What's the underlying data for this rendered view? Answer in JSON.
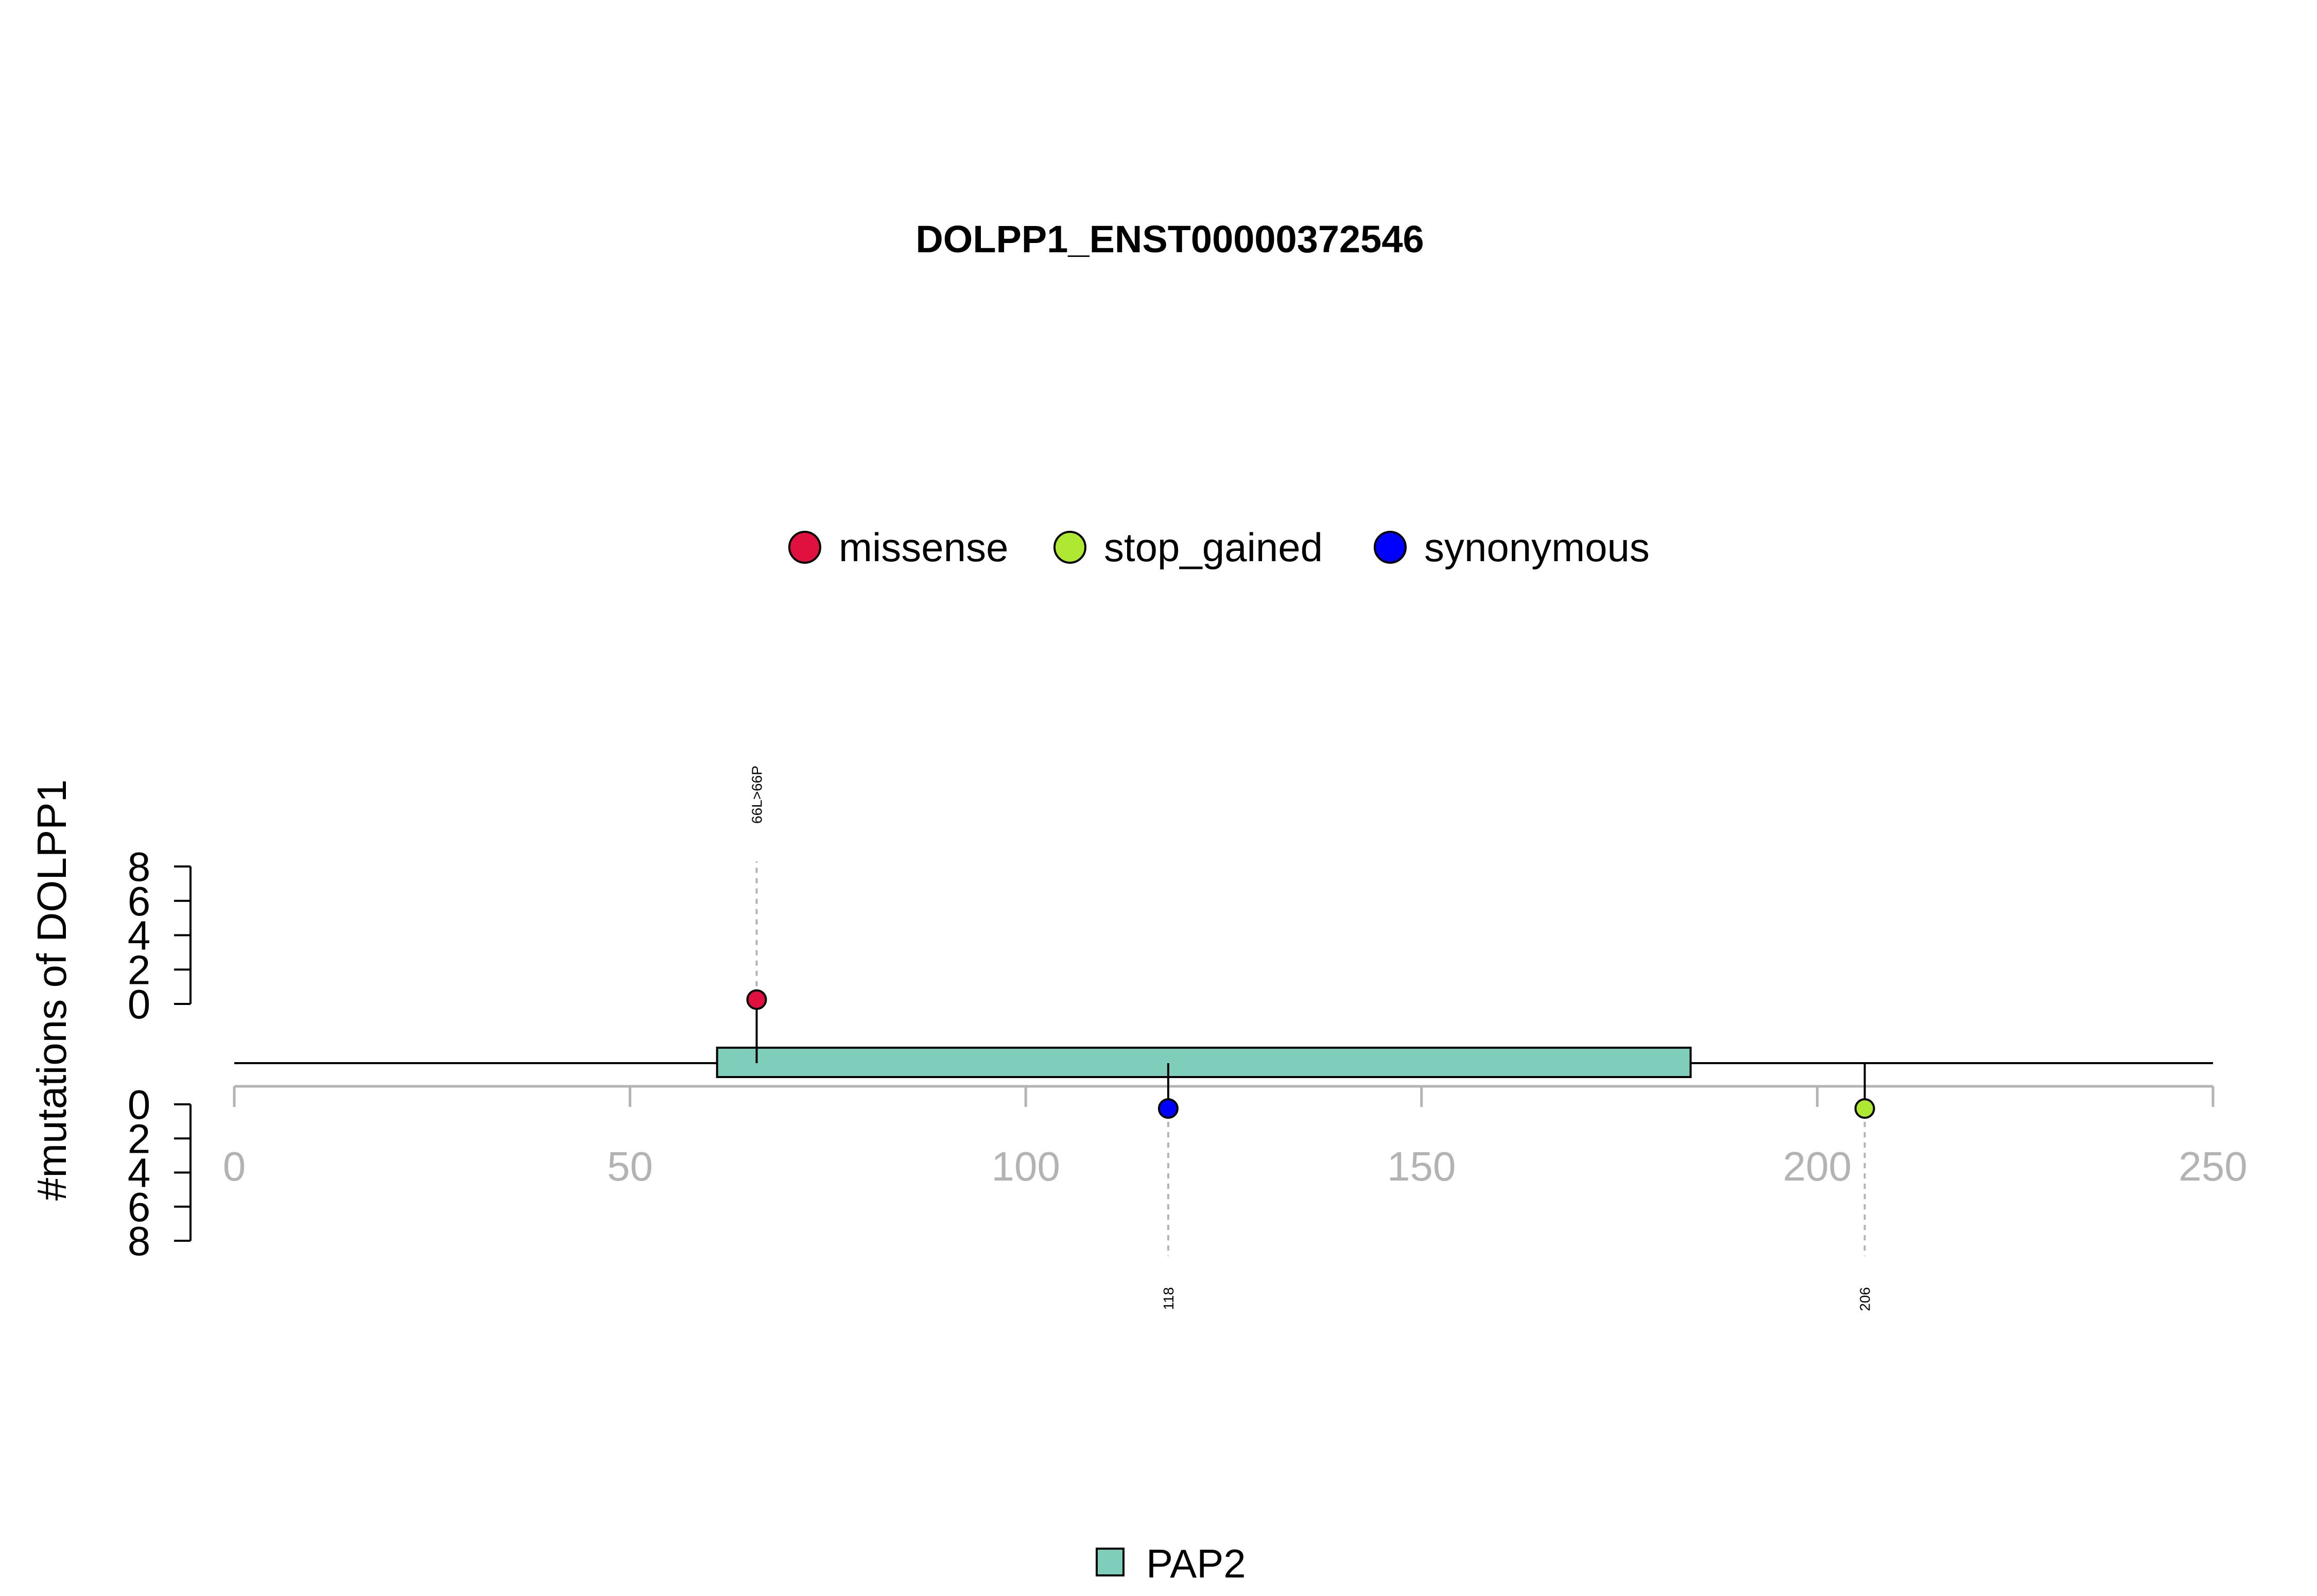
{
  "chart_data": {
    "type": "lollipop",
    "title": "DOLPP1_ENST00000372546",
    "ylabel": "#mutations of DOLPP1",
    "xlim": [
      0,
      250
    ],
    "x_ticks": [
      0,
      50,
      100,
      150,
      200,
      250
    ],
    "x_tick_labels": [
      "0",
      "50",
      "100",
      "150",
      "200",
      "250"
    ],
    "y_ticks_upper": [
      8,
      6,
      4,
      2,
      0
    ],
    "y_ticks_lower": [
      0,
      2,
      4,
      6,
      8
    ],
    "ylim": [
      0,
      8
    ],
    "legend": {
      "placement": "top-center",
      "entries": [
        {
          "label": "missense",
          "color": "#e0103f"
        },
        {
          "label": "stop_gained",
          "color": "#aee832"
        },
        {
          "label": "synonymous",
          "color": "#0000ff"
        }
      ]
    },
    "domains": [
      {
        "name": "PAP2",
        "start": 61,
        "end": 184,
        "color": "#7fcdbb"
      }
    ],
    "domain_legend": {
      "placement": "bottom-center",
      "entries": [
        {
          "label": "PAP2",
          "color": "#7fcdbb"
        }
      ]
    },
    "mutations": [
      {
        "position": 66,
        "count": 1,
        "type": "missense",
        "side": "top",
        "label": "66L>66P",
        "color": "#e0103f"
      },
      {
        "position": 118,
        "count": 1,
        "type": "synonymous",
        "side": "bottom",
        "label": "118",
        "color": "#0000ff"
      },
      {
        "position": 206,
        "count": 1,
        "type": "stop_gained",
        "side": "bottom",
        "label": "206",
        "color": "#aee832"
      }
    ]
  }
}
